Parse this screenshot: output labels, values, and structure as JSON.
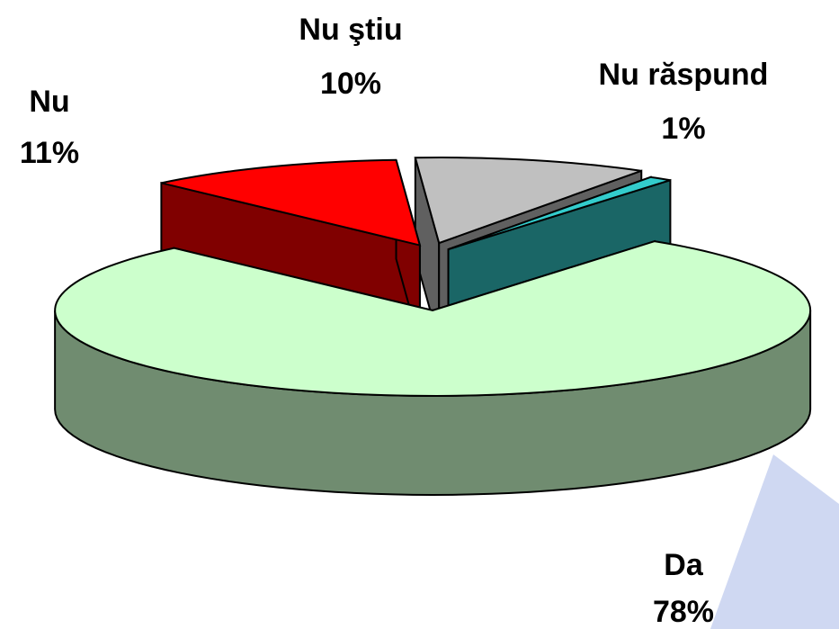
{
  "chart_data": {
    "type": "pie3d",
    "categories": [
      "Da",
      "Nu",
      "Nu ştiu",
      "Nu răspund"
    ],
    "values": [
      78,
      11,
      10,
      1
    ],
    "value_labels": [
      "78%",
      "11%",
      "10%",
      "1%"
    ],
    "colors": [
      "#ccffcc",
      "#ff0000",
      "#c0c0c0",
      "#33cccc"
    ]
  }
}
